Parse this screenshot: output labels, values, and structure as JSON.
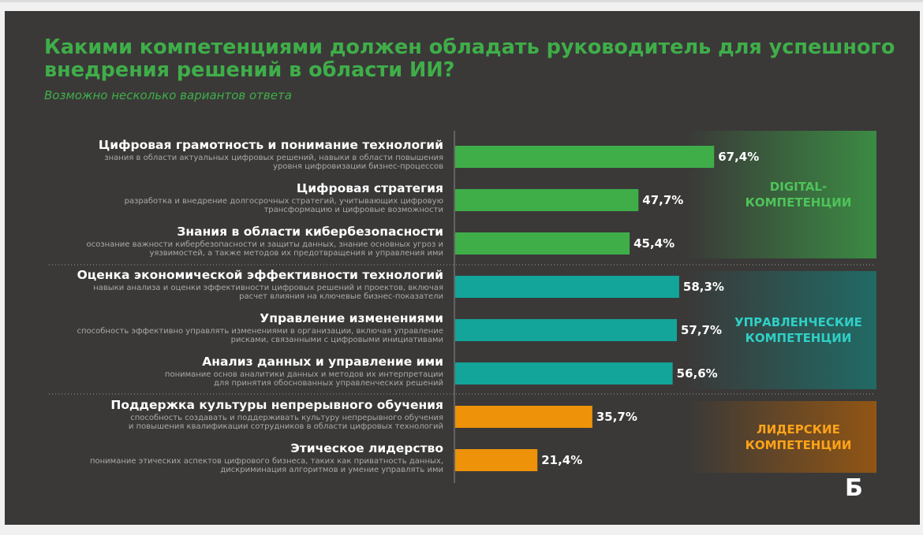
{
  "title": "Какими компетенциями должен обладать руководитель для успешного внедрения решений в области ИИ?",
  "subtitle": "Возможно несколько вариантов ответа",
  "logo_text": "Б",
  "colors": {
    "background": "#3a3938",
    "title": "#3fae49",
    "digital": "#3fae49",
    "management": "#13a49a",
    "leadership": "#ee9209"
  },
  "chart_data": {
    "type": "bar",
    "orientation": "horizontal",
    "xlim": [
      0,
      100
    ],
    "value_suffix": "%",
    "categories": [
      {
        "title": "Цифровая грамотность и понимание технологий",
        "desc": [
          "знания в области актуальных цифровых решений, навыки в области повышения",
          "уровня цифровизации бизнес-процессов"
        ],
        "group": "digital"
      },
      {
        "title": "Цифровая стратегия",
        "desc": [
          "разработка и внедрение долгосрочных стратегий, учитывающих цифровую",
          "трансформацию и цифровые возможности"
        ],
        "group": "digital"
      },
      {
        "title": "Знания в области кибербезопасности",
        "desc": [
          "осознание важности кибербезопасности и защиты данных, знание основных угроз и",
          "уязвимостей, а также методов их предотвращения и управления ими"
        ],
        "group": "digital"
      },
      {
        "title": "Оценка экономической эффективности технологий",
        "desc": [
          "навыки анализа и оценки эффективности цифровых решений и проектов, включая",
          "расчет влияния на ключевые бизнес-показатели"
        ],
        "group": "management"
      },
      {
        "title": "Управление изменениями",
        "desc": [
          "способность эффективно управлять изменениями в организации, включая управление",
          "рисками, связанными с цифровыми инициативами"
        ],
        "group": "management"
      },
      {
        "title": "Анализ данных и управление ими",
        "desc": [
          "понимание основ аналитики данных и методов их интерпретации",
          "для принятия обоснованных управленческих решений"
        ],
        "group": "management"
      },
      {
        "title": "Поддержка культуры непрерывного обучения",
        "desc": [
          "способность создавать и поддерживать культуру непрерывного обучения",
          "и повышения квалификации сотрудников в области цифровых технологий"
        ],
        "group": "leadership"
      },
      {
        "title": "Этическое лидерство",
        "desc": [
          "понимание этических аспектов цифрового бизнеса, таких как приватность данных,",
          "дискриминация алгоритмов и умение управлять ими"
        ],
        "group": "leadership"
      }
    ],
    "values": [
      67.4,
      47.7,
      45.4,
      58.3,
      57.7,
      56.6,
      35.7,
      21.4
    ],
    "value_labels": [
      "67,4%",
      "47,7%",
      "45,4%",
      "58,3%",
      "57,7%",
      "56,6%",
      "35,7%",
      "21,4%"
    ],
    "groups": [
      {
        "key": "digital",
        "label": [
          "DIGITAL-",
          "КОМПЕТЕНЦИИ"
        ],
        "color": "#3fae49",
        "label_color": "#4ec45a"
      },
      {
        "key": "management",
        "label": [
          "УПРАВЛЕНЧЕСКИЕ",
          "КОМПЕТЕНЦИИ"
        ],
        "color": "#13a49a",
        "label_color": "#2fd0c6"
      },
      {
        "key": "leadership",
        "label": [
          "ЛИДЕРСКИЕ",
          "КОМПЕТЕНЦИИ"
        ],
        "color": "#ee9209",
        "label_color": "#ffa318"
      }
    ]
  }
}
